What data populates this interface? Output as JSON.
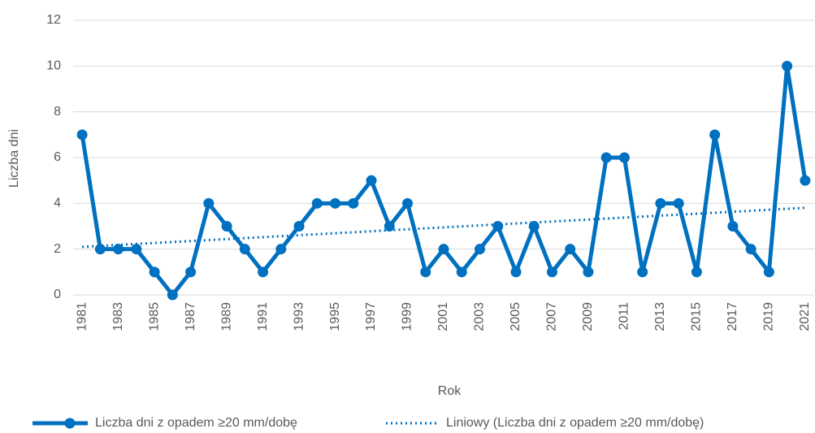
{
  "chart_data": {
    "type": "line",
    "y_label": "Liczba dni",
    "x_label": "Rok",
    "categories": [
      "1981",
      null,
      "1983",
      null,
      "1985",
      null,
      "1987",
      null,
      "1989",
      null,
      "1991",
      null,
      "1993",
      null,
      "1995",
      null,
      "1997",
      null,
      "1999",
      null,
      "2001",
      null,
      "2003",
      null,
      "2005",
      null,
      "2007",
      null,
      "2009",
      null,
      "2011",
      null,
      "2013",
      null,
      "2015",
      null,
      "2017",
      null,
      "2019",
      null,
      "2021"
    ],
    "series": [
      {
        "name": "Liczba dni z opadem ≥20 mm/dobę",
        "color": "#0070c0",
        "values": [
          7,
          2,
          2,
          2,
          1,
          0,
          1,
          4,
          3,
          2,
          1,
          2,
          3,
          4,
          4,
          4,
          5,
          3,
          4,
          1,
          2,
          1,
          2,
          3,
          1,
          3,
          1,
          2,
          1,
          6,
          6,
          1,
          4,
          4,
          1,
          7,
          3,
          2,
          1,
          10,
          5
        ]
      }
    ],
    "trendline": {
      "name": "Liniowy (Liczba dni z opadem ≥20 mm/dobę)",
      "color": "#0070c0",
      "style": "dotted"
    },
    "ylim": [
      0,
      12
    ],
    "yticks": [
      0,
      2,
      4,
      6,
      8,
      10,
      12
    ],
    "grid": true,
    "legend": "bottom"
  }
}
